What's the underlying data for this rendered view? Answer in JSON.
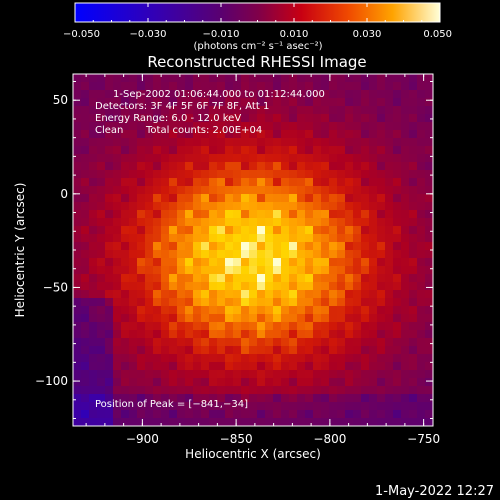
{
  "colorbar": {
    "ticks": [
      -0.05,
      -0.03,
      -0.01,
      0.01,
      0.03,
      0.05
    ],
    "tick_labels": [
      "−0.050",
      "−0.030",
      "−0.010",
      "0.010",
      "0.030",
      "0.050"
    ],
    "unit_label": "(photons cm⁻² s⁻¹ asec⁻²)",
    "range": [
      -0.05,
      0.05
    ],
    "colors": [
      "#0000ff",
      "#3b00a8",
      "#550077",
      "#7f004c",
      "#ad0021",
      "#d01808",
      "#ee5a00",
      "#ff9d00",
      "#ffd400",
      "#ffffd0"
    ]
  },
  "chart_data": {
    "type": "heatmap",
    "title": "Reconstructed RHESSI Image",
    "xlabel": "Heliocentric X (arcsec)",
    "ylabel": "Heliocentric Y (arcsec)",
    "xlim": [
      -937,
      -745
    ],
    "ylim": [
      -124,
      64
    ],
    "xticks": [
      -900,
      -850,
      -800,
      -750
    ],
    "xtick_labels": [
      "−900",
      "−850",
      "−800",
      "−750"
    ],
    "yticks": [
      -100,
      -50,
      0,
      50
    ],
    "ytick_labels": [
      "−100",
      "−50",
      "0",
      "50"
    ],
    "peak": [
      -841,
      -34
    ],
    "annotations": [
      "1-Sep-2002 01:06:44.000 to 01:12:44.000",
      "Detectors: 3F 4F 5F 6F 7F 8F, Att 1",
      "Energy Range: 6.0 - 12.0 keV",
      "Clean",
      "Total counts: 2.00E+04",
      "Position of Peak = [−841,−34]"
    ]
  },
  "footer": {
    "timestamp": "1-May-2022 12:27"
  }
}
